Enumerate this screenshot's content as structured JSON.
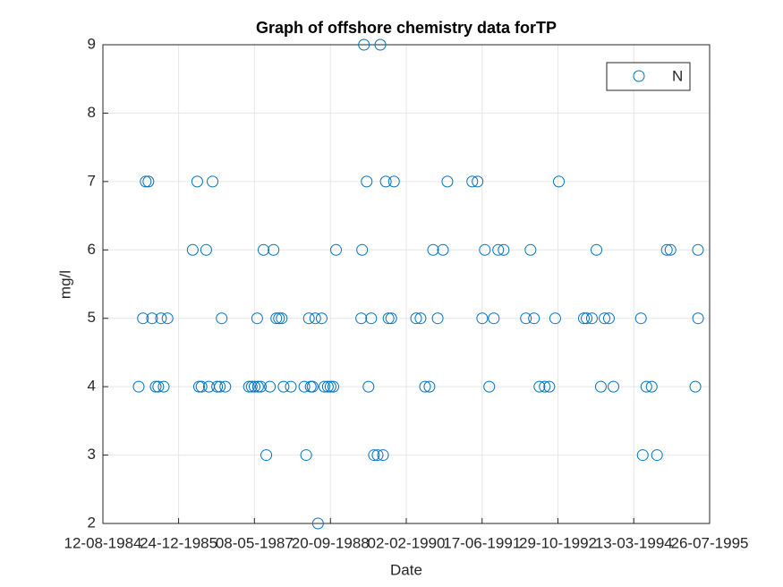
{
  "chart_data": {
    "type": "scatter",
    "title": "Graph of offshore chemistry data forTP",
    "x_label": "Date",
    "y_label": "mg/l",
    "series": [
      {
        "name": "N",
        "color": "#0072BD",
        "x": [
          "05-04-1985",
          "03-05-1985",
          "21-05-1985",
          "08-06-1985",
          "02-07-1985",
          "26-07-1985",
          "12-08-1985",
          "30-08-1985",
          "17-09-1985",
          "12-10-1985",
          "27-03-1986",
          "26-04-1986",
          "08-05-1986",
          "24-05-1986",
          "24-06-1986",
          "12-07-1986",
          "05-08-1986",
          "04-09-1986",
          "22-09-1986",
          "04-10-1986",
          "28-10-1986",
          "02-04-1987",
          "20-04-1987",
          "09-05-1987",
          "26-05-1987",
          "01-06-1987",
          "19-06-1987",
          "07-07-1987",
          "25-07-1987",
          "18-08-1987",
          "11-09-1987",
          "29-09-1987",
          "17-10-1987",
          "04-11-1987",
          "16-11-1987",
          "03-01-1988",
          "01-04-1988",
          "13-04-1988",
          "01-05-1988",
          "13-05-1988",
          "25-05-1988",
          "12-06-1988",
          "30-06-1988",
          "24-07-1988",
          "11-08-1988",
          "03-09-1988",
          "21-09-1988",
          "09-10-1988",
          "27-10-1988",
          "11-04-1989",
          "17-04-1989",
          "29-04-1989",
          "17-05-1989",
          "29-05-1989",
          "16-06-1989",
          "04-07-1989",
          "28-07-1989",
          "15-08-1989",
          "02-09-1989",
          "20-09-1989",
          "08-10-1989",
          "26-10-1989",
          "13-11-1989",
          "08-04-1990",
          "07-05-1990",
          "06-06-1990",
          "05-07-1990",
          "29-07-1990",
          "28-08-1990",
          "02-10-1990",
          "31-10-1990",
          "13-04-1991",
          "18-05-1991",
          "18-06-1991",
          "05-07-1991",
          "03-08-1991",
          "02-09-1991",
          "01-10-1991",
          "06-11-1991",
          "01-04-1992",
          "01-05-1992",
          "24-05-1992",
          "29-06-1992",
          "03-08-1992",
          "02-09-1992",
          "11-10-1992",
          "04-11-1992",
          "18-04-1993",
          "06-05-1993",
          "10-06-1993",
          "10-07-1993",
          "08-08-1993",
          "01-09-1993",
          "30-09-1993",
          "30-10-1993",
          "29-04-1994",
          "11-05-1994",
          "04-06-1994",
          "09-07-1994",
          "13-08-1994",
          "17-10-1994",
          "10-11-1994",
          "23-04-1995",
          "10-05-1995",
          "11-05-1995"
        ],
        "values": [
          4,
          5,
          7,
          7,
          5,
          4,
          4,
          5,
          4,
          5,
          6,
          7,
          4,
          4,
          6,
          4,
          7,
          4,
          4,
          5,
          4,
          4,
          4,
          4,
          5,
          4,
          4,
          6,
          3,
          4,
          6,
          5,
          5,
          5,
          4,
          4,
          4,
          3,
          5,
          4,
          4,
          5,
          2,
          5,
          4,
          4,
          4,
          4,
          6,
          5,
          6,
          9,
          7,
          4,
          5,
          3,
          3,
          9,
          3,
          7,
          5,
          5,
          7,
          5,
          5,
          4,
          4,
          6,
          5,
          6,
          7,
          7,
          7,
          5,
          6,
          4,
          5,
          6,
          6,
          5,
          6,
          5,
          4,
          4,
          4,
          5,
          7,
          5,
          5,
          5,
          6,
          4,
          5,
          5,
          4,
          5,
          3,
          4,
          4,
          3,
          6,
          6,
          4,
          6,
          5
        ]
      }
    ],
    "xlim": [
      "12-08-1984",
      "26-07-1995"
    ],
    "xticks": [
      "12-08-1984",
      "24-12-1985",
      "08-05-1987",
      "20-09-1988",
      "02-02-1990",
      "17-06-1991",
      "29-10-1992",
      "13-03-1994",
      "26-07-1995"
    ],
    "ylim": [
      2,
      9
    ],
    "yticks": [
      2,
      3,
      4,
      5,
      6,
      7,
      8,
      9
    ],
    "grid": true,
    "legend": "upper right"
  }
}
